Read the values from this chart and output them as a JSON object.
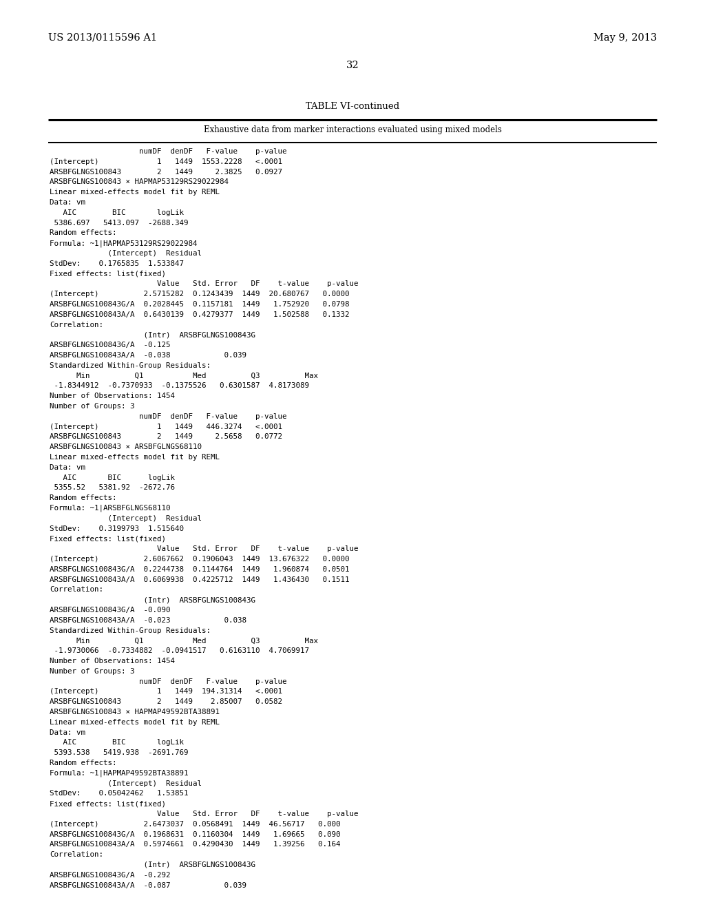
{
  "header_left": "US 2013/0115596 A1",
  "header_right": "May 9, 2013",
  "page_number": "32",
  "table_title": "TABLE VI-continued",
  "table_subtitle": "Exhaustive data from marker interactions evaluated using mixed models",
  "background_color": "#ffffff",
  "text_color": "#000000",
  "content": [
    "                    numDF  denDF   F-value    p-value",
    "(Intercept)             1   1449  1553.2228   <.0001",
    "ARSBFGLNGS100843        2   1449     2.3825   0.0927",
    "ARSBFGLNGS100843 × HAPMAP53129RS29022984",
    "Linear mixed-effects model fit by REML",
    "Data: vm",
    "   AIC        BIC       logLik",
    " 5386.697   5413.097  -2688.349",
    "Random effects:",
    "Formula: ~1|HAPMAP53129RS29022984",
    "             (Intercept)  Residual",
    "StdDev:    0.1765835  1.533847",
    "Fixed effects: list(fixed)",
    "                        Value   Std. Error   DF    t-value    p-value",
    "(Intercept)          2.5715282  0.1243439  1449  20.680767   0.0000",
    "ARSBFGLNGS100843G/A  0.2028445  0.1157181  1449   1.752920   0.0798",
    "ARSBFGLNGS100843A/A  0.6430139  0.4279377  1449   1.502588   0.1332",
    "Correlation:",
    "                     (Intr)  ARSBFGLNGS100843G",
    "ARSBFGLNGS100843G/A  -0.125",
    "ARSBFGLNGS100843A/A  -0.038            0.039",
    "Standardized Within-Group Residuals:",
    "      Min          Q1           Med          Q3          Max",
    " -1.8344912  -0.7370933  -0.1375526   0.6301587  4.8173089",
    "Number of Observations: 1454",
    "Number of Groups: 3",
    "                    numDF  denDF   F-value    p-value",
    "(Intercept)             1   1449   446.3274   <.0001",
    "ARSBFGLNGS100843        2   1449     2.5658   0.0772",
    "ARSBFGLNGS100843 × ARSBFGLNGS68110",
    "Linear mixed-effects model fit by REML",
    "Data: vm",
    "   AIC       BIC      logLik",
    " 5355.52   5381.92  -2672.76",
    "Random effects:",
    "Formula: ~1|ARSBFGLNGS68110",
    "             (Intercept)  Residual",
    "StdDev:    0.3199793  1.515640",
    "Fixed effects: list(fixed)",
    "                        Value   Std. Error   DF    t-value    p-value",
    "(Intercept)          2.6067662  0.1906043  1449  13.676322   0.0000",
    "ARSBFGLNGS100843G/A  0.2244738  0.1144764  1449   1.960874   0.0501",
    "ARSBFGLNGS100843A/A  0.6069938  0.4225712  1449   1.436430   0.1511",
    "Correlation:",
    "                     (Intr)  ARSBFGLNGS100843G",
    "ARSBFGLNGS100843G/A  -0.090",
    "ARSBFGLNGS100843A/A  -0.023            0.038",
    "Standardized Within-Group Residuals:",
    "      Min          Q1           Med          Q3          Max",
    " -1.9730066  -0.7334882  -0.0941517   0.6163110  4.7069917",
    "Number of Observations: 1454",
    "Number of Groups: 3",
    "                    numDF  denDF   F-value    p-value",
    "(Intercept)             1   1449  194.31314   <.0001",
    "ARSBFGLNGS100843        2   1449    2.85007   0.0582",
    "ARSBFGLNGS100843 × HAPMAP49592BTA38891",
    "Linear mixed-effects model fit by REML",
    "Data: vm",
    "   AIC        BIC       logLik",
    " 5393.538   5419.938  -2691.769",
    "Random effects:",
    "Formula: ~1|HAPMAP49592BTA38891",
    "             (Intercept)  Residual",
    "StdDev:    0.05042462   1.53851",
    "Fixed effects: list(fixed)",
    "                        Value   Std. Error   DF    t-value    p-value",
    "(Intercept)          2.6473037  0.0568491  1449  46.56717   0.000",
    "ARSBFGLNGS100843G/A  0.1968631  0.1160304  1449   1.69665   0.090",
    "ARSBFGLNGS100843A/A  0.5974661  0.4290430  1449   1.39256   0.164",
    "Correlation:",
    "                     (Intr)  ARSBFGLNGS100843G",
    "ARSBFGLNGS100843G/A  -0.292",
    "ARSBFGLNGS100843A/A  -0.087            0.039"
  ]
}
